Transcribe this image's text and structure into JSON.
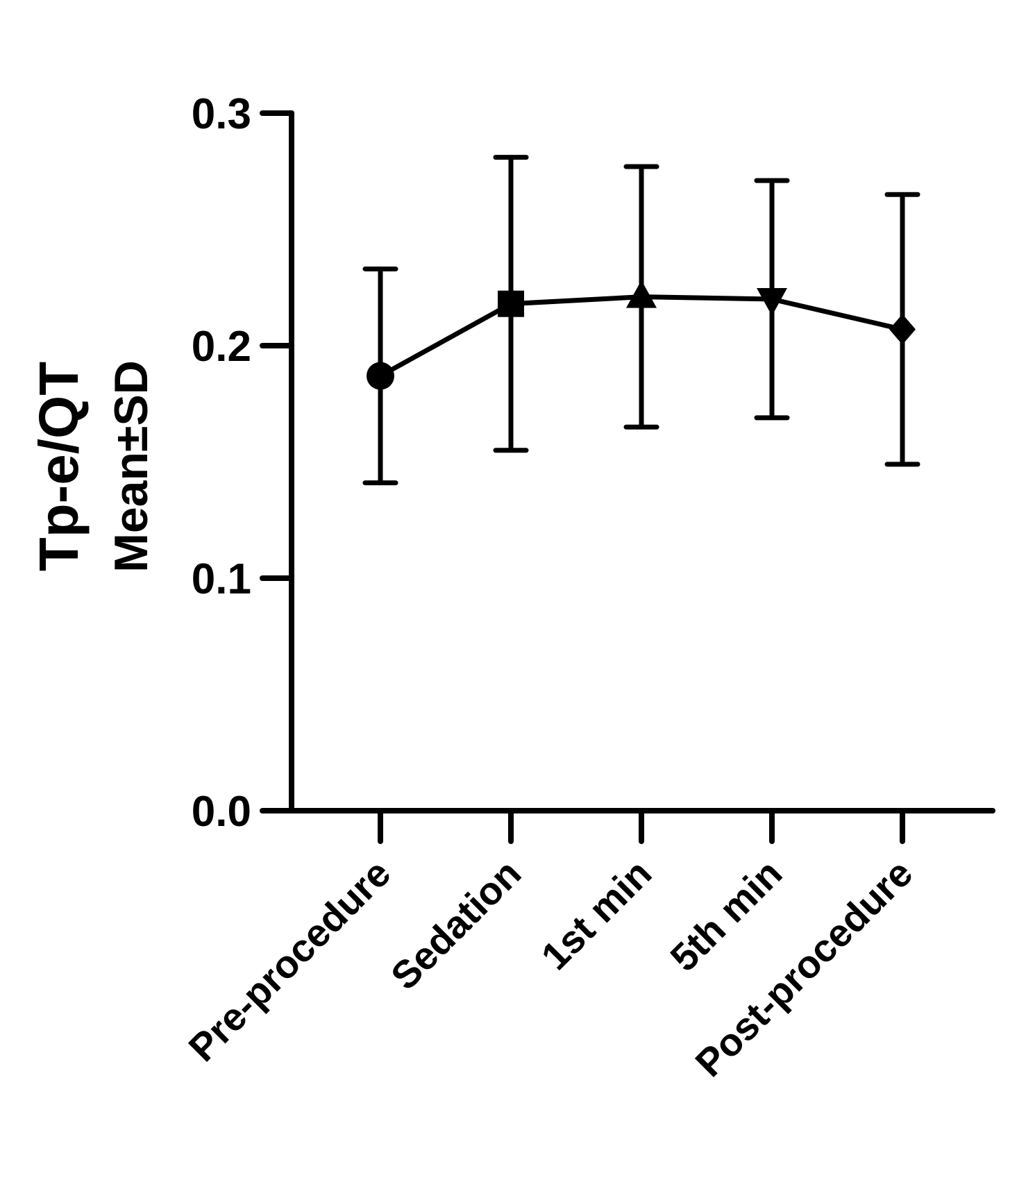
{
  "chart_data": {
    "type": "line",
    "title": "",
    "ylabel": "Tp-e/QT",
    "ylabel_sub": "Mean±SD",
    "xlabel": "",
    "categories": [
      "Pre-procedure",
      "Sedation",
      "1st min",
      "5th min",
      "Post-procedure"
    ],
    "series": [
      {
        "mean": [
          0.187,
          0.218,
          0.221,
          0.22,
          0.207
        ],
        "sd": [
          0.046,
          0.063,
          0.056,
          0.051,
          0.058
        ],
        "markers": [
          "circle",
          "square",
          "triangle-up",
          "triangle-down",
          "diamond"
        ]
      }
    ],
    "ylim": [
      0.0,
      0.3
    ],
    "yticks": [
      "0.0",
      "0.1",
      "0.2",
      "0.3"
    ],
    "grid": false,
    "legend": "none",
    "colors": {
      "line": "#000000",
      "background": "#ffffff"
    }
  }
}
